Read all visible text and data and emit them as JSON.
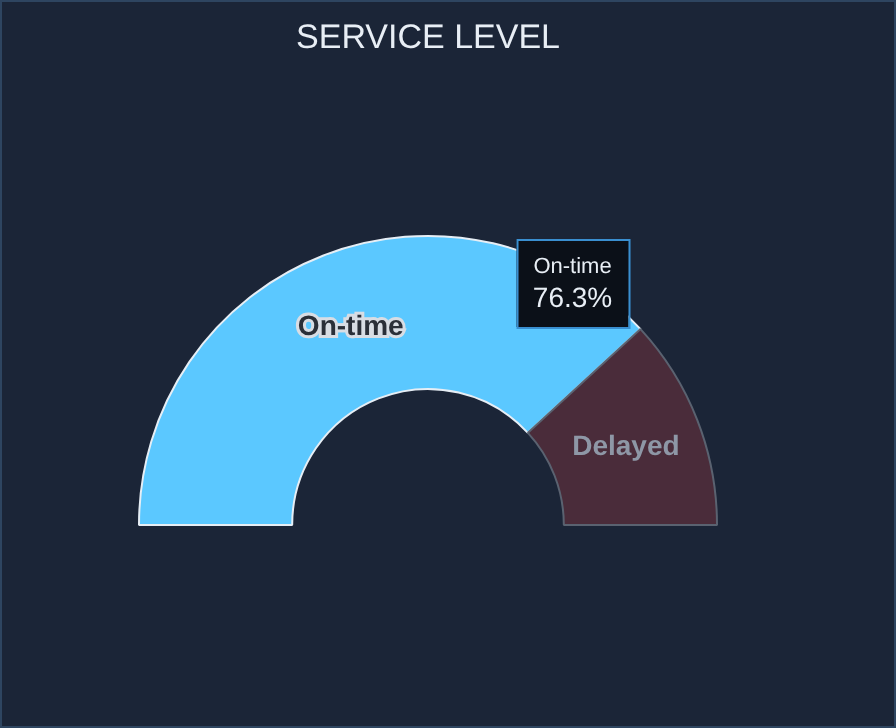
{
  "chart_data": {
    "type": "donut",
    "title": "SERVICE LEVEL",
    "categories": [
      "On-time",
      "Delayed"
    ],
    "values": [
      76.3,
      23.7
    ],
    "colors": [
      "#5bc8ff",
      "#4a2c3a"
    ],
    "value_labels": [
      "76.3%",
      null
    ]
  }
}
